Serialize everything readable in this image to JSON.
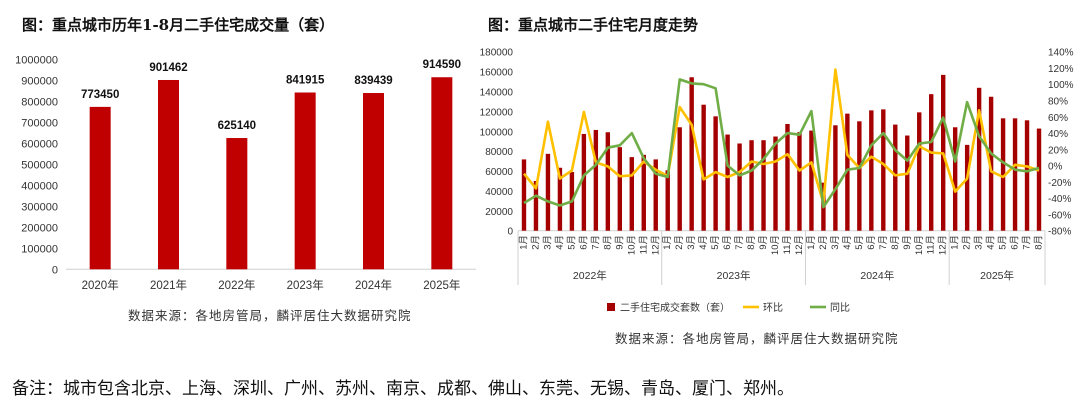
{
  "left_title": "图：重点城市历年1-8月二手住宅成交量（套）",
  "right_title": "图：重点城市二手住宅月度走势",
  "left_source": "数据来源：各地房管局，麟评居住大数据研究院",
  "right_source": "数据来源：各地房管局，麟评居住大数据研究院",
  "note": "备注：城市包含北京、上海、深圳、广州、苏州、南京、成都、佛山、东莞、无锡、青岛、厦门、郑州。",
  "colors": {
    "bar": "#C00000",
    "bar_dark": "#A50000",
    "mom": "#FFC000",
    "yoy": "#70AD47"
  },
  "chart_data": [
    {
      "type": "bar",
      "title": "图：重点城市历年1-8月二手住宅成交量（套）",
      "categories": [
        "2020年",
        "2021年",
        "2022年",
        "2023年",
        "2024年",
        "2025年"
      ],
      "values": [
        773450,
        901462,
        625140,
        841915,
        839439,
        914590
      ],
      "data_labels": [
        "773450",
        "901462",
        "625140",
        "841915",
        "839439",
        "914590"
      ],
      "ylim": [
        0,
        1000000
      ],
      "yticks": [
        "0",
        "100000",
        "200000",
        "300000",
        "400000",
        "500000",
        "600000",
        "700000",
        "800000",
        "900000",
        "1000000"
      ],
      "grid": false
    },
    {
      "type": "bar+line",
      "title": "图：重点城市二手住宅月度走势",
      "years": [
        "2022年",
        "2023年",
        "2024年",
        "2025年"
      ],
      "months_per_year": [
        12,
        12,
        12,
        8
      ],
      "month_labels": [
        "1月",
        "2月",
        "3月",
        "4月",
        "5月",
        "6月",
        "7月",
        "8月",
        "9月",
        "10月",
        "11月",
        "12月"
      ],
      "ylim_left": [
        0,
        180000
      ],
      "yticks_left": [
        "0",
        "20000",
        "40000",
        "60000",
        "80000",
        "100000",
        "120000",
        "140000",
        "160000",
        "180000"
      ],
      "ylim_right": [
        -80,
        140
      ],
      "yticks_right": [
        "-80%",
        "-60%",
        "-40%",
        "-20%",
        "0%",
        "20%",
        "40%",
        "60%",
        "80%",
        "100%",
        "120%",
        "140%"
      ],
      "legend_position": "bottom",
      "series": [
        {
          "name": "二手住宅成交套数（套）",
          "axis": "left",
          "type": "bar",
          "values": [
            71700,
            50000,
            77300,
            63300,
            59000,
            97300,
            101300,
            99000,
            84000,
            74000,
            76300,
            71700,
            60700,
            104000,
            154300,
            126700,
            115000,
            96700,
            87700,
            91000,
            91000,
            94700,
            107300,
            99000,
            100700,
            48300,
            106000,
            117700,
            110000,
            121000,
            122000,
            106700,
            95700,
            119000,
            137300,
            156700,
            104000,
            86300,
            143700,
            134700,
            113000,
            113000,
            111000,
            102700
          ]
        },
        {
          "name": "环比",
          "axis": "right",
          "type": "line",
          "unit": "%",
          "values": [
            -10,
            -28,
            54,
            -16,
            -6,
            66,
            4,
            -1,
            -13,
            -12,
            5,
            -5,
            -13,
            72,
            50,
            -17,
            -8,
            -14,
            -8,
            5,
            2,
            5,
            14,
            -6,
            4,
            -46,
            118,
            13,
            -3,
            11,
            2,
            -12,
            -10,
            24,
            16,
            15,
            -32,
            -16,
            68,
            -7,
            -14,
            1,
            -1,
            -6
          ]
        },
        {
          "name": "同比",
          "axis": "right",
          "type": "line",
          "unit": "%",
          "values": [
            -46,
            -37,
            -44,
            -49,
            -44,
            -12,
            1,
            22,
            25,
            40,
            9,
            -10,
            -14,
            106,
            101,
            100,
            95,
            0,
            -12,
            -6,
            8,
            27,
            40,
            38,
            67,
            -51,
            -29,
            -5,
            -3,
            25,
            40,
            19,
            6,
            27,
            29,
            59,
            5,
            78,
            36,
            15,
            4,
            -5,
            -7,
            -3
          ]
        }
      ]
    }
  ]
}
